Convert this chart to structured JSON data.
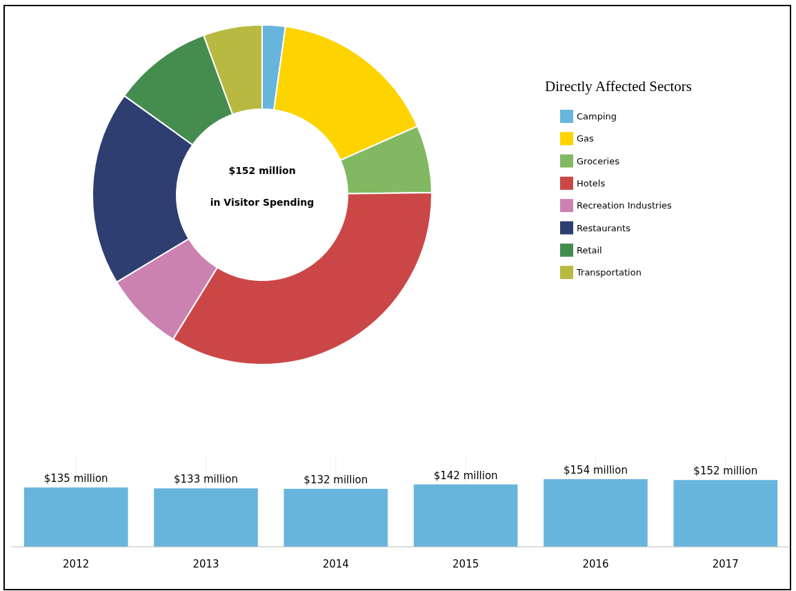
{
  "chart_data": [
    {
      "type": "donut",
      "legend_title": "Directly Affected Sectors",
      "legend": "right",
      "annotations": [
        "$152 million",
        "in Visitor Spending"
      ],
      "categories": [
        "Camping",
        "Gas",
        "Groceries",
        "Hotels",
        "Recreation Industries",
        "Restaurants",
        "Retail",
        "Transportation"
      ],
      "values": [
        2.2,
        16.2,
        6.4,
        34.0,
        7.6,
        18.5,
        9.5,
        5.6
      ],
      "colors": [
        "#67b5dc",
        "#fdd300",
        "#83b863",
        "#cb4747",
        "#cc82b0",
        "#2e3e71",
        "#448d4f",
        "#b8b941"
      ]
    },
    {
      "type": "bar",
      "grid": "x",
      "categories": [
        "2012",
        "2013",
        "2014",
        "2015",
        "2016",
        "2017"
      ],
      "values": [
        135,
        133,
        132,
        142,
        154,
        152
      ],
      "value_labels": [
        "$135 million",
        "$133 million",
        "$132 million",
        "$142 million",
        "$154 million",
        "$152 million"
      ],
      "color": "#67b5dc"
    }
  ]
}
